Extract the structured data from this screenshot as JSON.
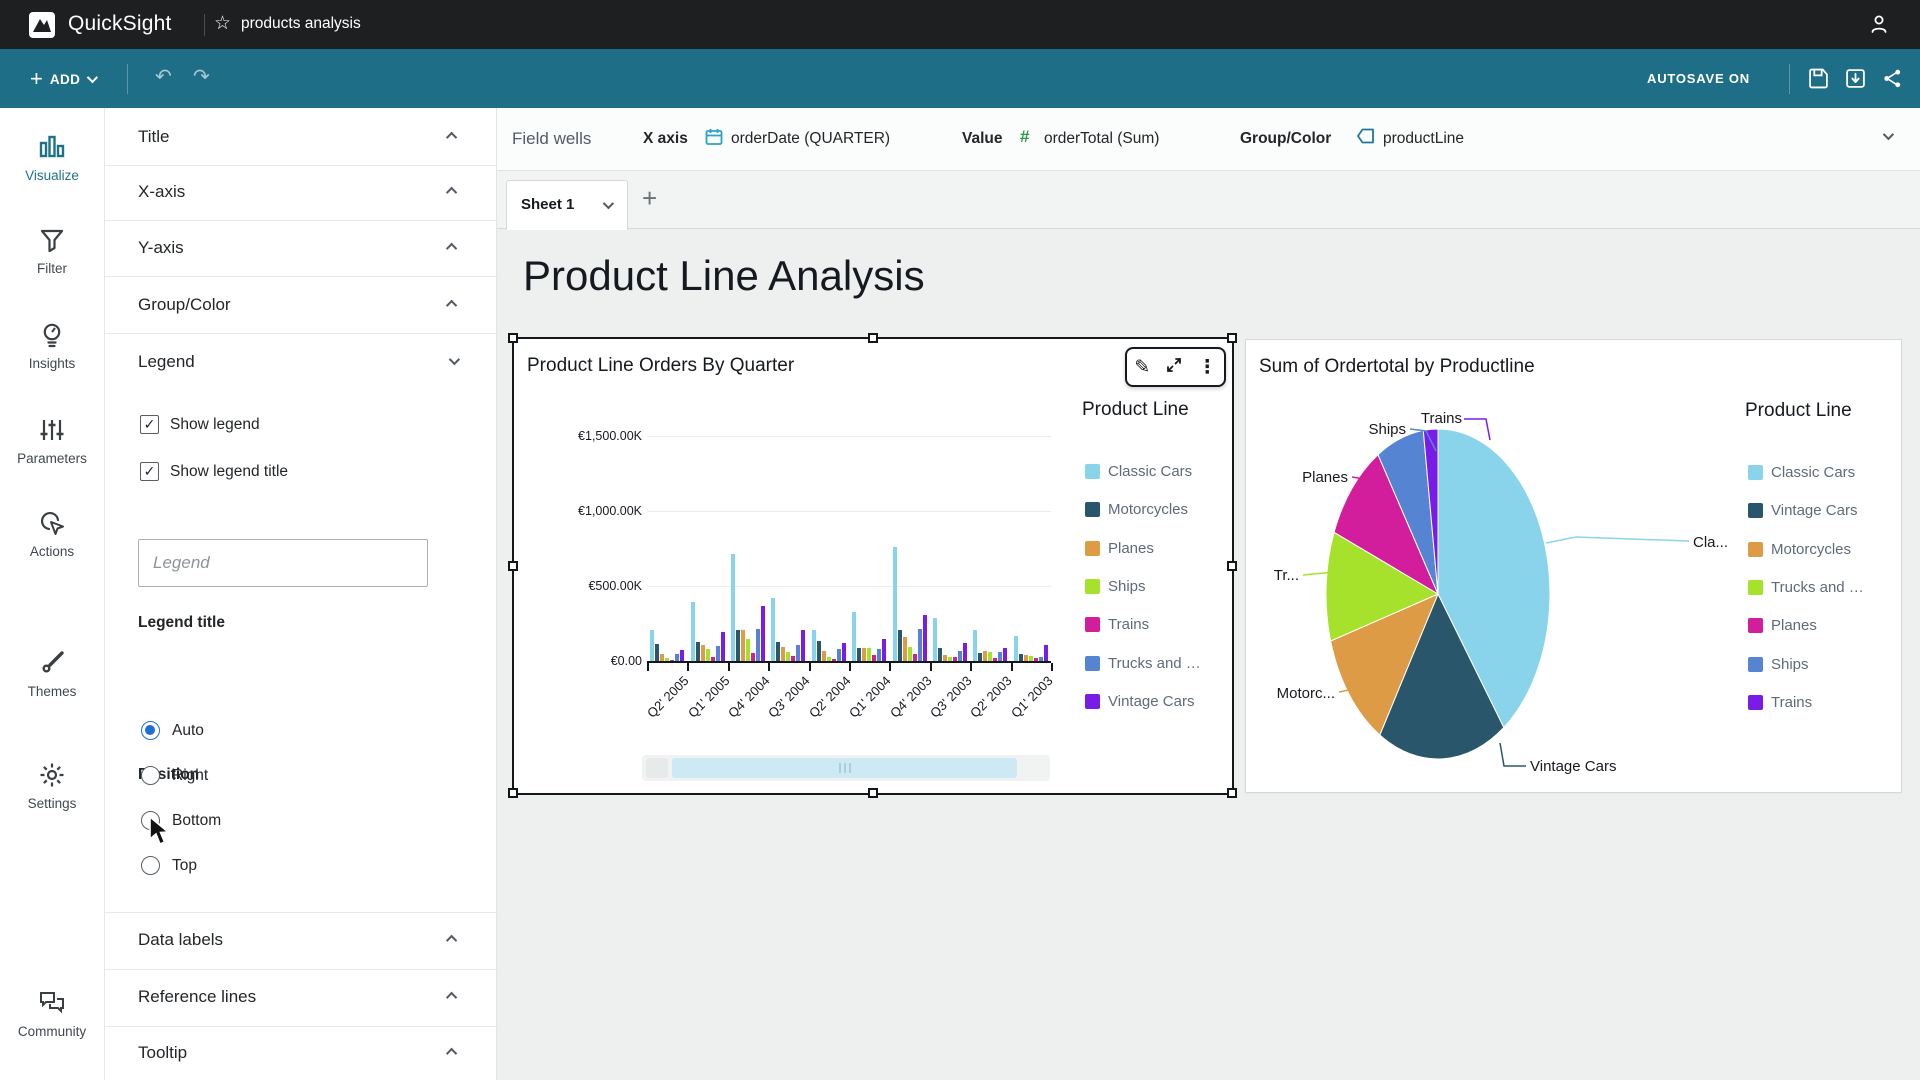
{
  "topbar": {
    "brand": "QuickSight",
    "doc_title": "products analysis"
  },
  "toolbar": {
    "add_label": "ADD",
    "autosave_label": "AUTOSAVE ON"
  },
  "sidebar": {
    "items": [
      {
        "label": "Visualize",
        "icon": "bar-chart-icon",
        "active": true
      },
      {
        "label": "Filter",
        "icon": "funnel-icon",
        "active": false
      },
      {
        "label": "Insights",
        "icon": "lightbulb-icon",
        "active": false
      },
      {
        "label": "Parameters",
        "icon": "sliders-icon",
        "active": false
      },
      {
        "label": "Actions",
        "icon": "cursor-click-icon",
        "active": false
      },
      {
        "label": "Themes",
        "icon": "paintbrush-icon",
        "active": false
      },
      {
        "label": "Settings",
        "icon": "gear-icon",
        "active": false
      },
      {
        "label": "Community",
        "icon": "chat-bubbles-icon",
        "active": false
      }
    ]
  },
  "format_panel": {
    "sections_top": [
      "Title",
      "X-axis",
      "Y-axis",
      "Group/Color"
    ],
    "legend_section": {
      "label": "Legend",
      "checkboxes": [
        {
          "label": "Show legend",
          "checked": true
        },
        {
          "label": "Show legend title",
          "checked": true
        }
      ],
      "legend_title_label": "Legend title",
      "legend_title_placeholder": "Legend",
      "position_label": "Position",
      "position_options": [
        {
          "label": "Auto",
          "selected": true
        },
        {
          "label": "Right",
          "selected": false
        },
        {
          "label": "Bottom",
          "selected": false
        },
        {
          "label": "Top",
          "selected": false
        }
      ]
    },
    "sections_bottom": [
      "Data labels",
      "Reference lines",
      "Tooltip"
    ]
  },
  "field_wells": {
    "label": "Field wells",
    "wells": [
      {
        "name": "X axis",
        "icon": "calendar-icon",
        "value": "orderDate (QUARTER)"
      },
      {
        "name": "Value",
        "icon": "number-hash-icon",
        "value": "orderTotal (Sum)"
      },
      {
        "name": "Group/Color",
        "icon": "dimension-icon",
        "value": "productLine"
      }
    ]
  },
  "sheet_tabs": {
    "active_tab": "Sheet 1"
  },
  "canvas": {
    "page_title": "Product Line Analysis"
  },
  "bar_widget": {
    "title": "Product Line Orders By Quarter",
    "legend_title": "Product Line",
    "legend": [
      {
        "label": "Classic Cars",
        "color": "#8AD4EB"
      },
      {
        "label": "Motorcycles",
        "color": "#29566B"
      },
      {
        "label": "Planes",
        "color": "#DE9B45"
      },
      {
        "label": "Ships",
        "color": "#A6E22C"
      },
      {
        "label": "Trains",
        "color": "#D21E9C"
      },
      {
        "label": "Trucks and …",
        "color": "#5585D2"
      },
      {
        "label": "Vintage Cars",
        "color": "#7A1CE8"
      }
    ]
  },
  "pie_widget": {
    "title": "Sum of Ordertotal by Productline",
    "legend_title": "Product Line",
    "legend": [
      {
        "label": "Classic Cars",
        "color": "#8AD4EB"
      },
      {
        "label": "Vintage Cars",
        "color": "#29566B"
      },
      {
        "label": "Motorcycles",
        "color": "#DE9B45"
      },
      {
        "label": "Trucks and …",
        "color": "#A6E22C"
      },
      {
        "label": "Planes",
        "color": "#D21E9C"
      },
      {
        "label": "Ships",
        "color": "#5585D2"
      },
      {
        "label": "Trains",
        "color": "#7A1CE8"
      }
    ],
    "callouts": [
      {
        "text": "Trains",
        "color": "#7A1CE8"
      },
      {
        "text": "Ships",
        "color": "#5585D2"
      },
      {
        "text": "Planes",
        "color": "#D21E9C"
      },
      {
        "text": "Tr...",
        "color": "#A6E22C"
      },
      {
        "text": "Motorc...",
        "color": "#DE9B45"
      },
      {
        "text": "Vintage Cars",
        "color": "#29566B"
      },
      {
        "text": "Cla...",
        "color": "#8AD4EB"
      }
    ]
  },
  "chart_data": [
    {
      "type": "bar",
      "title": "Product Line Orders By Quarter",
      "categories": [
        "Q2' 2005",
        "Q1' 2005",
        "Q4' 2004",
        "Q3' 2004",
        "Q2' 2004",
        "Q1' 2004",
        "Q4' 2003",
        "Q3' 2003",
        "Q2' 2003",
        "Q1' 2003"
      ],
      "unit": "thousands of EUR",
      "ylim": [
        0,
        1500
      ],
      "x_label_rotation": -45,
      "grid": true,
      "legend_title": "Product Line",
      "legend_position": "right",
      "y_ticks": [
        {
          "value": 1500,
          "label": "€1,500.00K"
        },
        {
          "value": 1000,
          "label": "€1,000.00K"
        },
        {
          "value": 500,
          "label": "€500.00K"
        },
        {
          "value": 0,
          "label": "€0.00"
        }
      ],
      "series": [
        {
          "name": "Classic Cars",
          "color": "#8AD4EB",
          "values": [
            210,
            395,
            715,
            420,
            210,
            330,
            760,
            290,
            210,
            165
          ]
        },
        {
          "name": "Motorcycles",
          "color": "#29566B",
          "values": [
            115,
            125,
            210,
            125,
            135,
            90,
            205,
            90,
            55,
            45
          ]
        },
        {
          "name": "Planes",
          "color": "#DE9B45",
          "values": [
            50,
            105,
            210,
            95,
            70,
            85,
            160,
            40,
            70,
            40
          ]
        },
        {
          "name": "Ships",
          "color": "#A6E22C",
          "values": [
            18,
            80,
            150,
            60,
            25,
            90,
            95,
            30,
            60,
            35
          ]
        },
        {
          "name": "Trains",
          "color": "#D21E9C",
          "values": [
            10,
            30,
            55,
            35,
            12,
            40,
            45,
            25,
            18,
            18
          ]
        },
        {
          "name": "Trucks and …",
          "color": "#5585D2",
          "values": [
            45,
            100,
            215,
            110,
            80,
            80,
            215,
            70,
            60,
            25
          ]
        },
        {
          "name": "Vintage Cars",
          "color": "#7A1CE8",
          "values": [
            75,
            195,
            365,
            210,
            120,
            150,
            305,
            120,
            90,
            110
          ]
        }
      ]
    },
    {
      "type": "pie",
      "title": "Sum of Ordertotal by Productline",
      "labels": [
        "Classic Cars",
        "Vintage Cars",
        "Motorcycles",
        "Trucks and …",
        "Planes",
        "Ships",
        "Trains"
      ],
      "values_percent": [
        40,
        18.7,
        11.7,
        10.7,
        9.9,
        6.9,
        2.1
      ],
      "colors": [
        "#8AD4EB",
        "#29566B",
        "#DE9B45",
        "#A6E22C",
        "#D21E9C",
        "#5585D2",
        "#7A1CE8"
      ],
      "legend_title": "Product Line",
      "legend_position": "right",
      "start_angle_deg": 0,
      "clockwise": true
    }
  ]
}
